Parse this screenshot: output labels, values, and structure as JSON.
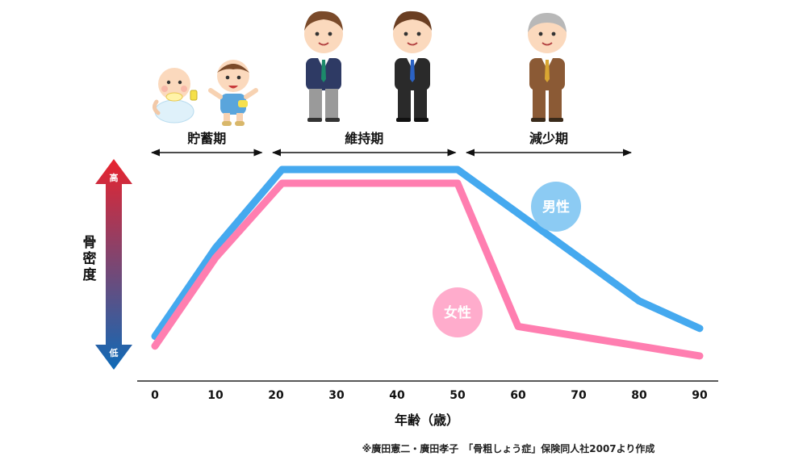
{
  "chart_data": {
    "type": "line",
    "title": "",
    "xlabel": "年齢（歳）",
    "ylabel": "骨密度",
    "y_high_label": "高",
    "y_low_label": "低",
    "x_ticks": [
      0,
      10,
      20,
      30,
      40,
      50,
      60,
      70,
      80,
      90
    ],
    "xlim": [
      0,
      90
    ],
    "ylim": [
      0,
      100
    ],
    "y_axis_ticks_shown": false,
    "grid": false,
    "legend": "inline-bubble",
    "series": [
      {
        "name": "男性",
        "color": "#45a9ef",
        "bubble_color": "#8ccbf3",
        "x": [
          0,
          10,
          21,
          50,
          80,
          90
        ],
        "y": [
          15,
          60,
          100,
          100,
          33,
          19
        ]
      },
      {
        "name": "女性",
        "color": "#ff7eb0",
        "bubble_color": "#ffaccc",
        "x": [
          0,
          10,
          21,
          50,
          60,
          90
        ],
        "y": [
          10,
          55,
          93,
          93,
          20,
          5
        ]
      }
    ],
    "periods": [
      {
        "label": "貯蓄期",
        "start": 0,
        "end": 17
      },
      {
        "label": "維持期",
        "start": 20,
        "end": 49
      },
      {
        "label": "減少期",
        "start": 52,
        "end": 78
      }
    ],
    "source": "※廣田憲二・廣田孝子　「骨粗しょう症」保険同人社2007より作成"
  },
  "colors": {
    "arrow_top": "#e8232e",
    "arrow_bottom": "#0e6ab7",
    "axis": "#222222",
    "text": "#111111"
  },
  "icons": [
    "baby-icon",
    "toddler-icon",
    "man-green-tie-icon",
    "man-blue-tie-icon",
    "elderly-man-icon"
  ]
}
